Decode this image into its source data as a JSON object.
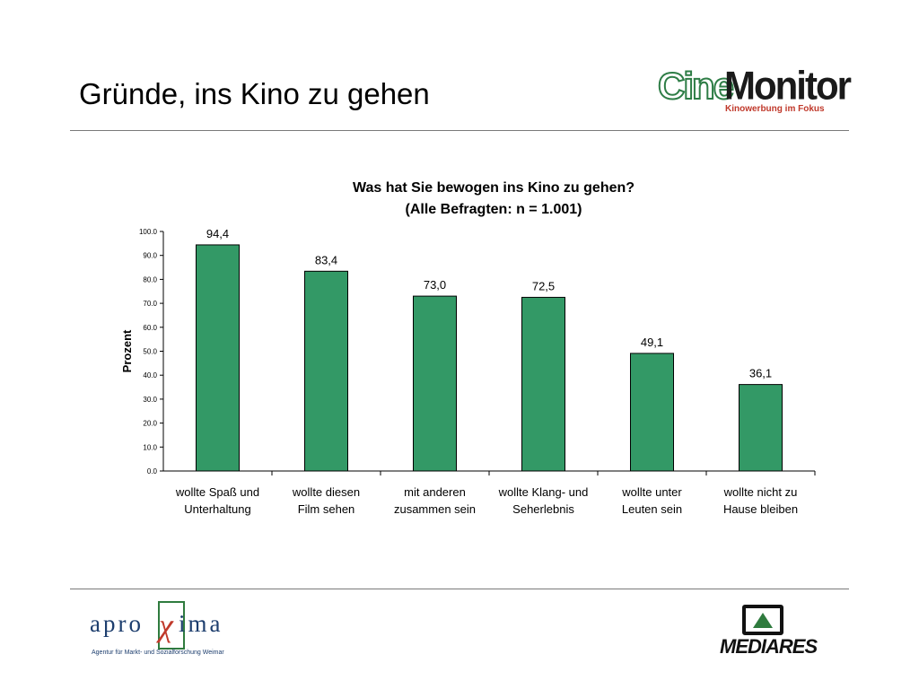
{
  "slide": {
    "title": "Gründe, ins Kino zu gehen"
  },
  "logos": {
    "cinemonitor": {
      "cine": "Cine",
      "monitor": "Monitor",
      "tagline": "Kinowerbung im Fokus"
    },
    "aproxima": {
      "name": "aproxima",
      "subtitle": "Agentur für Markt- und Sozialforschung Weimar"
    },
    "mediares": {
      "name": "MEDIARES"
    }
  },
  "colors": {
    "bar": "#339966",
    "accent_red": "#c0392b",
    "accent_green": "#2f7b3e"
  },
  "chart_data": {
    "type": "bar",
    "title": "Was hat Sie bewogen ins Kino zu gehen?",
    "subtitle": "(Alle Befragten:  n = 1.001)",
    "ylabel": "Prozent",
    "xlabel": "",
    "ylim": [
      0,
      100
    ],
    "ytick_step": 10,
    "grid": false,
    "legend": "none",
    "categories": [
      [
        "wollte Spaß und",
        "Unterhaltung"
      ],
      [
        "wollte diesen",
        "Film sehen"
      ],
      [
        "mit anderen",
        "zusammen sein"
      ],
      [
        "wollte Klang- und",
        "Seherlebnis"
      ],
      [
        "wollte unter",
        "Leuten sein"
      ],
      [
        "wollte nicht zu",
        "Hause bleiben"
      ]
    ],
    "values": [
      94.4,
      83.4,
      73.0,
      72.5,
      49.1,
      36.1
    ]
  }
}
